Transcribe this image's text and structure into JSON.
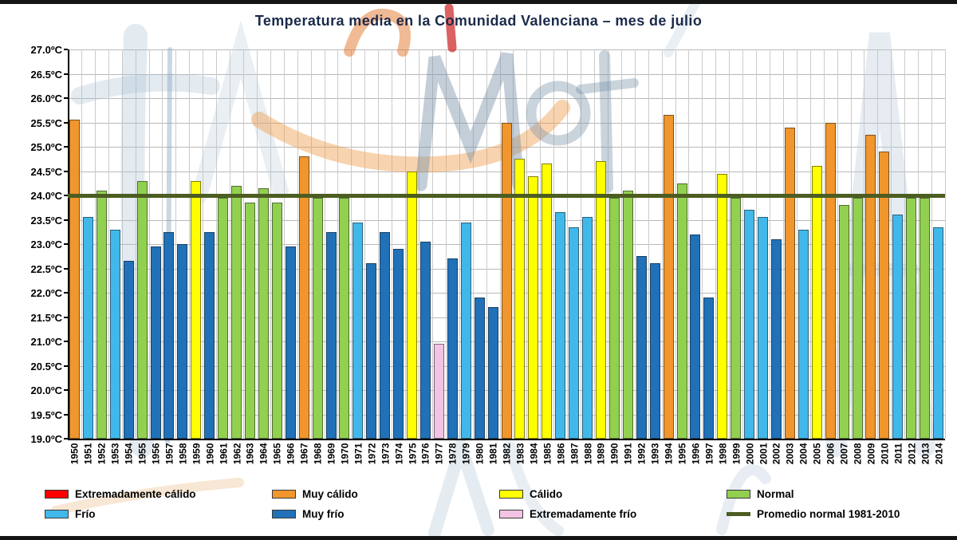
{
  "chart_data": {
    "type": "bar",
    "title": "Temperatura media en la Comunidad Valenciana – mes de julio",
    "ylim": [
      19.0,
      27.0
    ],
    "y_tick_step": 0.5,
    "y_tick_labels": [
      "27.0ºC",
      "26.5ºC",
      "26.0ºC",
      "25.5ºC",
      "25.0ºC",
      "24.5ºC",
      "24.0ºC",
      "23.5ºC",
      "23.0ºC",
      "22.5ºC",
      "22.0ºC",
      "21.5ºC",
      "21.0ºC",
      "20.5ºC",
      "20.0ºC",
      "19.5ºC",
      "19.0ºC"
    ],
    "grid": true,
    "legend_position": "bottom",
    "x": [
      "1950",
      "1951",
      "1952",
      "1953",
      "1954",
      "1955",
      "1956",
      "1957",
      "1958",
      "1959",
      "1960",
      "1961",
      "1962",
      "1963",
      "1964",
      "1965",
      "1966",
      "1967",
      "1968",
      "1969",
      "1970",
      "1971",
      "1972",
      "1973",
      "1974",
      "1975",
      "1976",
      "1977",
      "1978",
      "1979",
      "1980",
      "1981",
      "1982",
      "1983",
      "1984",
      "1985",
      "1986",
      "1987",
      "1988",
      "1989",
      "1990",
      "1991",
      "1992",
      "1993",
      "1994",
      "1995",
      "1996",
      "1997",
      "1998",
      "1999",
      "2000",
      "2001",
      "2002",
      "2003",
      "2004",
      "2005",
      "2006",
      "2007",
      "2008",
      "2009",
      "2010",
      "2011",
      "2012",
      "2013",
      "2014"
    ],
    "values": [
      25.55,
      23.55,
      24.1,
      23.3,
      22.65,
      24.3,
      22.95,
      23.25,
      23.0,
      24.3,
      23.25,
      23.95,
      24.2,
      23.85,
      24.15,
      23.85,
      22.95,
      24.8,
      23.95,
      23.25,
      23.95,
      23.45,
      22.6,
      23.25,
      22.9,
      24.5,
      23.05,
      20.95,
      22.7,
      23.45,
      21.9,
      21.7,
      25.5,
      24.75,
      24.4,
      24.65,
      23.65,
      23.35,
      23.55,
      24.7,
      23.95,
      24.1,
      22.75,
      22.6,
      25.65,
      24.25,
      23.2,
      21.9,
      24.45,
      23.95,
      23.7,
      23.55,
      23.1,
      25.4,
      23.3,
      24.6,
      25.5,
      23.8,
      23.95,
      25.25,
      24.9,
      23.6,
      23.95,
      23.95,
      23.35
    ],
    "categories_per_bar": [
      "muy_calido",
      "frio",
      "normal",
      "frio",
      "muy_frio",
      "normal",
      "muy_frio",
      "muy_frio",
      "muy_frio",
      "calido",
      "muy_frio",
      "normal",
      "normal",
      "normal",
      "normal",
      "normal",
      "muy_frio",
      "muy_calido",
      "normal",
      "muy_frio",
      "normal",
      "frio",
      "muy_frio",
      "muy_frio",
      "muy_frio",
      "calido",
      "muy_frio",
      "extremadamente_frio",
      "muy_frio",
      "frio",
      "muy_frio",
      "muy_frio",
      "muy_calido",
      "calido",
      "calido",
      "calido",
      "frio",
      "frio",
      "frio",
      "calido",
      "normal",
      "normal",
      "muy_frio",
      "muy_frio",
      "muy_calido",
      "normal",
      "muy_frio",
      "muy_frio",
      "calido",
      "normal",
      "frio",
      "frio",
      "muy_frio",
      "muy_calido",
      "frio",
      "calido",
      "muy_calido",
      "normal",
      "normal",
      "muy_calido",
      "muy_calido",
      "frio",
      "normal",
      "normal",
      "frio"
    ],
    "category_colors": {
      "extremadamente_calido": "#FE0000",
      "muy_calido": "#F0962D",
      "calido": "#FFFF00",
      "normal": "#92D050",
      "frio": "#41B8EA",
      "muy_frio": "#2071B8",
      "extremadamente_frio": "#F3C3E3",
      "promedio_normal": "#4C5D21"
    },
    "reference_line": {
      "value": 24.0,
      "color": "#4C5D21",
      "label": "Promedio normal 1981-2010"
    },
    "legend": [
      {
        "key": "extremadamente_calido",
        "label": "Extremadamente cálido",
        "swatch": "rect"
      },
      {
        "key": "muy_calido",
        "label": "Muy cálido",
        "swatch": "rect"
      },
      {
        "key": "calido",
        "label": "Cálido",
        "swatch": "rect"
      },
      {
        "key": "normal",
        "label": "Normal",
        "swatch": "rect"
      },
      {
        "key": "frio",
        "label": "Frío",
        "swatch": "rect"
      },
      {
        "key": "muy_frio",
        "label": "Muy frío",
        "swatch": "rect"
      },
      {
        "key": "extremadamente_frio",
        "label": "Extremadamente frío",
        "swatch": "rect"
      },
      {
        "key": "promedio_normal",
        "label": "Promedio normal 1981-2010",
        "swatch": "line"
      }
    ]
  }
}
